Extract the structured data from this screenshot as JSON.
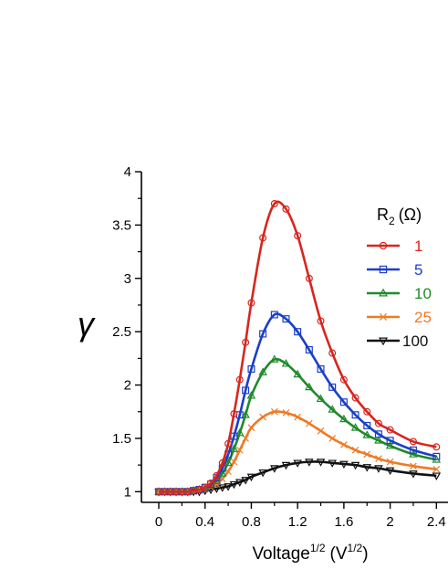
{
  "chart_data": {
    "type": "line",
    "title": "",
    "xlabel": {
      "main": "Voltage",
      "main_sup": "1/2",
      "unit_open": "(V",
      "unit_sup": "1/2",
      "unit_close": ")"
    },
    "ylabel": "γ",
    "xlim": [
      -0.15,
      2.5
    ],
    "ylim": [
      0.9,
      4.0
    ],
    "xticks": [
      "0",
      "0.4",
      "0.8",
      "1.2",
      "1.6",
      "2",
      "2.4"
    ],
    "xtick_values": [
      0,
      0.4,
      0.8,
      1.2,
      1.6,
      2.0,
      2.4
    ],
    "yticks": [
      "1",
      "1.5",
      "2",
      "2.5",
      "3",
      "3.5",
      "4"
    ],
    "ytick_values": [
      1,
      1.5,
      2,
      2.5,
      3,
      3.5,
      4
    ],
    "legend": {
      "title_main": "R",
      "title_sub": "2",
      "title_unit": "(Ω)",
      "placement": "top-right"
    },
    "x_markers": [
      0.0,
      0.05,
      0.1,
      0.15,
      0.2,
      0.25,
      0.3,
      0.35,
      0.4,
      0.45,
      0.5,
      0.55,
      0.6,
      0.65,
      0.7,
      0.75,
      0.8,
      0.9,
      1.0,
      1.1,
      1.2,
      1.3,
      1.4,
      1.5,
      1.6,
      1.7,
      1.8,
      1.9,
      2.0,
      2.2,
      2.4
    ],
    "series": [
      {
        "name": "1",
        "color": "#d7261e",
        "marker": "circle",
        "values": [
          1.0,
          1.0,
          1.0,
          1.0,
          1.0,
          1.0,
          1.01,
          1.02,
          1.04,
          1.08,
          1.15,
          1.27,
          1.45,
          1.73,
          2.05,
          2.4,
          2.77,
          3.38,
          3.7,
          3.65,
          3.4,
          3.0,
          2.6,
          2.3,
          2.05,
          1.88,
          1.75,
          1.64,
          1.58,
          1.47,
          1.42
        ]
      },
      {
        "name": "5",
        "color": "#1a3fc9",
        "marker": "square",
        "values": [
          1.0,
          1.0,
          1.0,
          1.0,
          1.0,
          1.0,
          1.01,
          1.02,
          1.04,
          1.07,
          1.13,
          1.22,
          1.35,
          1.52,
          1.72,
          1.95,
          2.15,
          2.48,
          2.66,
          2.62,
          2.5,
          2.33,
          2.15,
          1.98,
          1.84,
          1.72,
          1.62,
          1.54,
          1.48,
          1.39,
          1.33
        ]
      },
      {
        "name": "10",
        "color": "#1f8a2a",
        "marker": "triangle",
        "values": [
          1.0,
          1.0,
          1.0,
          1.0,
          1.0,
          1.0,
          1.01,
          1.02,
          1.03,
          1.06,
          1.1,
          1.17,
          1.27,
          1.4,
          1.55,
          1.72,
          1.9,
          2.12,
          2.24,
          2.2,
          2.1,
          1.98,
          1.87,
          1.77,
          1.68,
          1.6,
          1.53,
          1.48,
          1.43,
          1.35,
          1.3
        ]
      },
      {
        "name": "25",
        "color": "#ee7a25",
        "marker": "cross",
        "values": [
          1.0,
          1.0,
          1.0,
          1.0,
          1.0,
          1.0,
          1.0,
          1.01,
          1.02,
          1.04,
          1.07,
          1.12,
          1.19,
          1.28,
          1.39,
          1.5,
          1.6,
          1.7,
          1.75,
          1.74,
          1.7,
          1.64,
          1.57,
          1.5,
          1.44,
          1.39,
          1.35,
          1.31,
          1.28,
          1.24,
          1.21
        ]
      },
      {
        "name": "100",
        "color": "#111111",
        "marker": "triangle-down",
        "values": [
          1.0,
          1.0,
          1.0,
          1.0,
          1.0,
          1.0,
          1.0,
          1.0,
          1.01,
          1.02,
          1.03,
          1.04,
          1.05,
          1.07,
          1.09,
          1.11,
          1.14,
          1.18,
          1.22,
          1.25,
          1.27,
          1.28,
          1.28,
          1.27,
          1.26,
          1.25,
          1.23,
          1.22,
          1.2,
          1.17,
          1.15
        ]
      }
    ]
  }
}
